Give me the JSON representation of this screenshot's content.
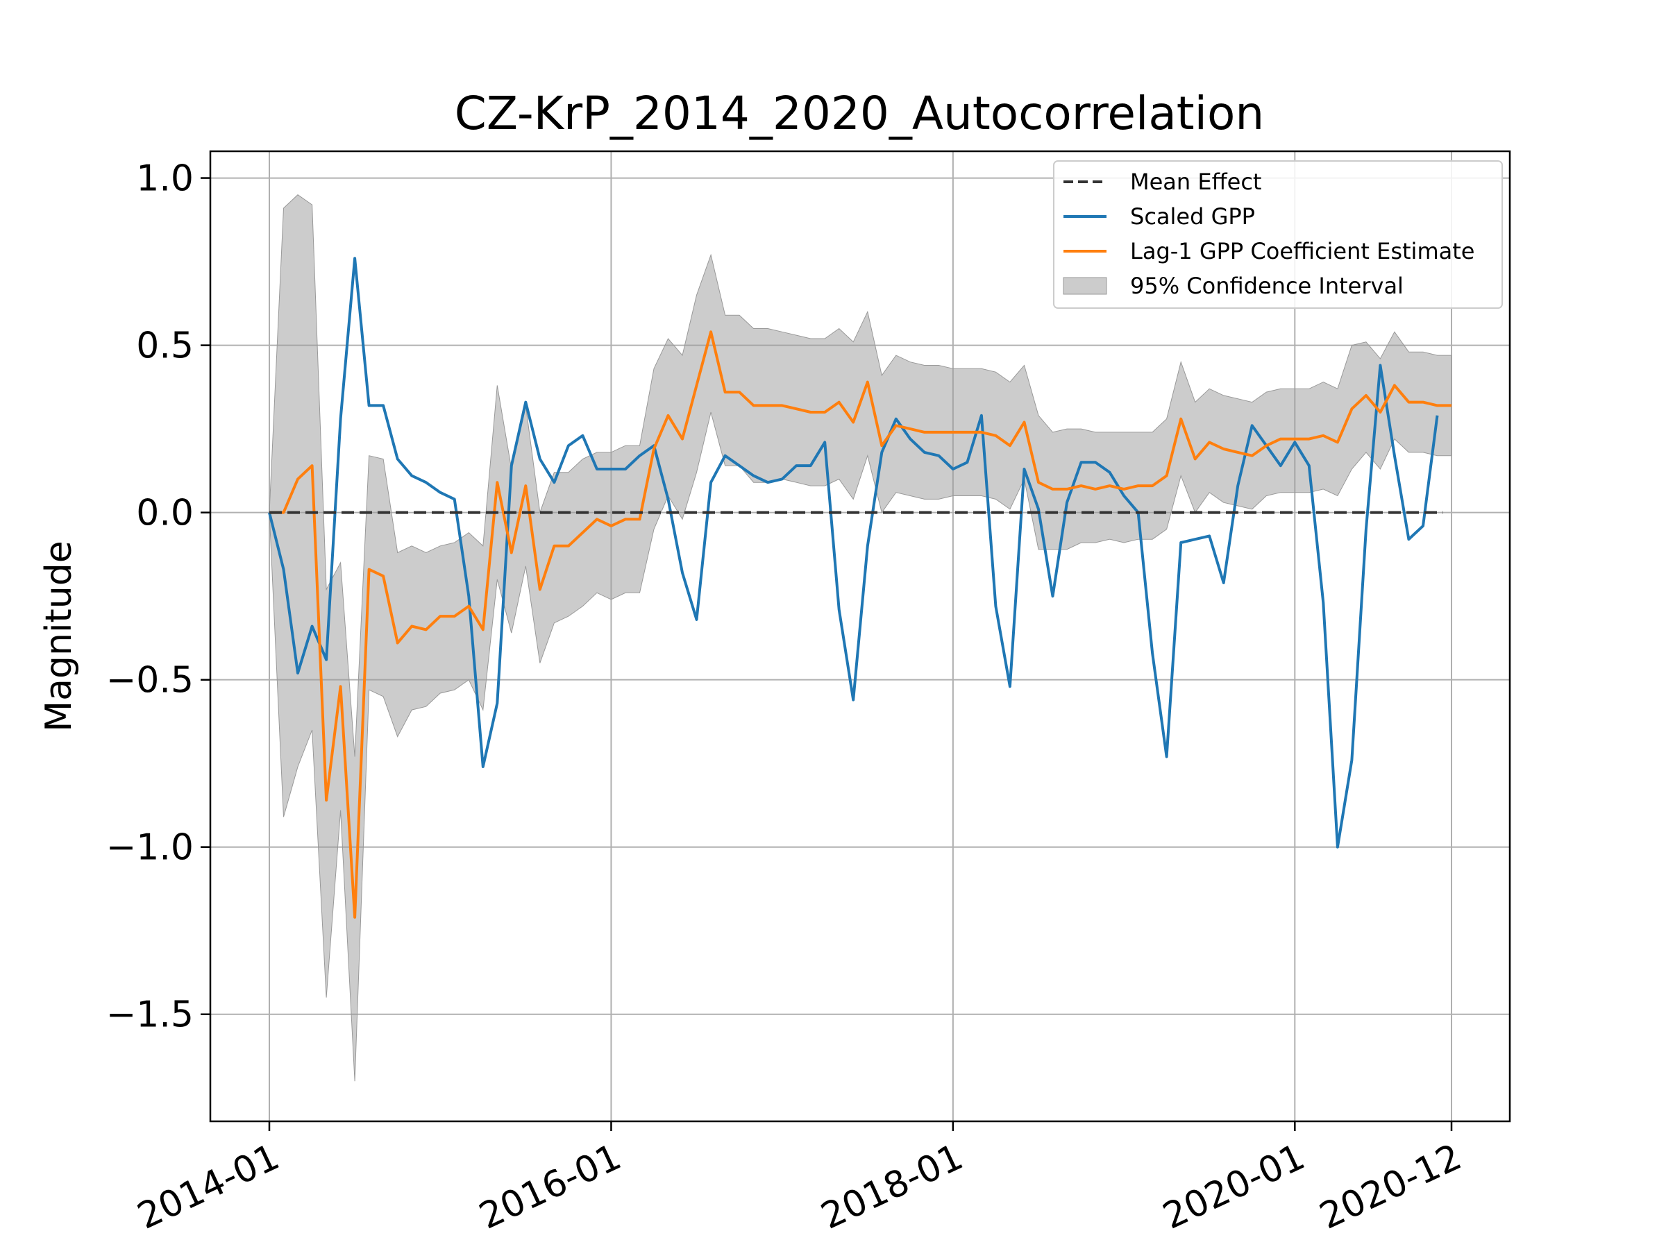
{
  "chart_data": {
    "type": "line",
    "title": "CZ-KrP_2014_2020_Autocorrelation",
    "xlabel": "",
    "ylabel": "Magnitude",
    "x_ticks": [
      "2014-01",
      "2016-01",
      "2018-01",
      "2020-01",
      "2020-12"
    ],
    "y_ticks": [
      "1.0",
      "0.5",
      "0.0",
      "−0.5",
      "−1.0",
      "−1.5"
    ],
    "ylim": [
      -1.82,
      1.08
    ],
    "grid": true,
    "legend_position": "top-right",
    "x_dates": [
      "2014-01",
      "2014-02",
      "2014-03",
      "2014-04",
      "2014-05",
      "2014-06",
      "2014-07",
      "2014-08",
      "2014-09",
      "2014-10",
      "2014-11",
      "2014-12",
      "2015-01",
      "2015-02",
      "2015-03",
      "2015-04",
      "2015-05",
      "2015-06",
      "2015-07",
      "2015-08",
      "2015-09",
      "2015-10",
      "2015-11",
      "2015-12",
      "2016-01",
      "2016-02",
      "2016-03",
      "2016-04",
      "2016-05",
      "2016-06",
      "2016-07",
      "2016-08",
      "2016-09",
      "2016-10",
      "2016-11",
      "2016-12",
      "2017-01",
      "2017-02",
      "2017-03",
      "2017-04",
      "2017-05",
      "2017-06",
      "2017-07",
      "2017-08",
      "2017-09",
      "2017-10",
      "2017-11",
      "2017-12",
      "2018-01",
      "2018-02",
      "2018-03",
      "2018-04",
      "2018-05",
      "2018-06",
      "2018-07",
      "2018-08",
      "2018-09",
      "2018-10",
      "2018-11",
      "2018-12",
      "2019-01",
      "2019-02",
      "2019-03",
      "2019-04",
      "2019-05",
      "2019-06",
      "2019-07",
      "2019-08",
      "2019-09",
      "2019-10",
      "2019-11",
      "2019-12",
      "2020-01",
      "2020-02",
      "2020-03",
      "2020-04",
      "2020-05",
      "2020-06",
      "2020-07",
      "2020-08",
      "2020-09",
      "2020-10",
      "2020-11",
      "2020-12"
    ],
    "series": [
      {
        "name": "Mean Effect",
        "color": "#333333",
        "style": "dashed",
        "values": [
          0,
          0,
          0,
          0,
          0,
          0,
          0,
          0,
          0,
          0,
          0,
          0,
          0,
          0,
          0,
          0,
          0,
          0,
          0,
          0,
          0,
          0,
          0,
          0,
          0,
          0,
          0,
          0,
          0,
          0,
          0,
          0,
          0,
          0,
          0,
          0,
          0,
          0,
          0,
          0,
          0,
          0,
          0,
          0,
          0,
          0,
          0,
          0,
          0,
          0,
          0,
          0,
          0,
          0,
          0,
          0,
          0,
          0,
          0,
          0,
          0,
          0,
          0,
          0,
          0,
          0,
          0,
          0,
          0,
          0,
          0,
          0,
          0,
          0,
          0,
          0,
          0,
          0,
          0,
          0,
          0,
          0,
          0
        ]
      },
      {
        "name": "Scaled GPP",
        "color": "#1f77b4",
        "style": "solid",
        "values": [
          0.0,
          -0.17,
          -0.48,
          -0.34,
          -0.44,
          0.28,
          0.76,
          0.32,
          0.32,
          0.16,
          0.11,
          0.09,
          0.06,
          0.04,
          -0.25,
          -0.76,
          -0.57,
          0.14,
          0.33,
          0.16,
          0.09,
          0.2,
          0.23,
          0.13,
          0.13,
          0.13,
          0.17,
          0.2,
          0.04,
          -0.18,
          -0.32,
          0.09,
          0.17,
          0.14,
          0.11,
          0.09,
          0.1,
          0.14,
          0.14,
          0.21,
          -0.29,
          -0.56,
          -0.1,
          0.18,
          0.28,
          0.22,
          0.18,
          0.17,
          0.13,
          0.15,
          0.29,
          -0.28,
          -0.52,
          0.13,
          0.01,
          -0.25,
          0.03,
          0.15,
          0.15,
          0.12,
          0.05,
          0.0,
          -0.42,
          -0.73,
          -0.09,
          -0.08,
          -0.07,
          -0.21,
          0.08,
          0.26,
          0.2,
          0.14,
          0.21,
          0.14,
          -0.27,
          -1.0,
          -0.74,
          -0.05,
          0.44,
          0.17,
          -0.08,
          -0.04,
          0.29,
          null
        ]
      },
      {
        "name": "Lag-1 GPP Coefficient Estimate",
        "color": "#ff7f0e",
        "style": "solid",
        "values": [
          0.0,
          0.0,
          0.1,
          0.14,
          -0.86,
          -0.52,
          -1.21,
          -0.17,
          -0.19,
          -0.39,
          -0.34,
          -0.35,
          -0.31,
          -0.31,
          -0.28,
          -0.35,
          0.09,
          -0.12,
          0.08,
          -0.23,
          -0.1,
          -0.1,
          -0.06,
          -0.02,
          -0.04,
          -0.02,
          -0.02,
          0.19,
          0.29,
          0.22,
          0.38,
          0.54,
          0.36,
          0.36,
          0.32,
          0.32,
          0.32,
          0.31,
          0.3,
          0.3,
          0.33,
          0.27,
          0.39,
          0.2,
          0.26,
          0.25,
          0.24,
          0.24,
          0.24,
          0.24,
          0.24,
          0.23,
          0.2,
          0.27,
          0.09,
          0.07,
          0.07,
          0.08,
          0.07,
          0.08,
          0.07,
          0.08,
          0.08,
          0.11,
          0.28,
          0.16,
          0.21,
          0.19,
          0.18,
          0.17,
          0.2,
          0.22,
          0.22,
          0.22,
          0.23,
          0.21,
          0.31,
          0.35,
          0.3,
          0.38,
          0.33,
          0.33,
          0.32,
          0.32
        ]
      }
    ],
    "confidence_interval": {
      "name": "95% Confidence Interval",
      "color": "#999999",
      "upper": [
        0.0,
        0.91,
        0.95,
        0.92,
        -0.23,
        -0.15,
        -0.73,
        0.17,
        0.16,
        -0.12,
        -0.1,
        -0.12,
        -0.1,
        -0.09,
        -0.06,
        -0.1,
        0.38,
        0.13,
        0.32,
        0.0,
        0.12,
        0.12,
        0.16,
        0.18,
        0.18,
        0.2,
        0.2,
        0.43,
        0.52,
        0.47,
        0.65,
        0.77,
        0.59,
        0.59,
        0.55,
        0.55,
        0.54,
        0.53,
        0.52,
        0.52,
        0.55,
        0.51,
        0.6,
        0.41,
        0.47,
        0.45,
        0.44,
        0.44,
        0.43,
        0.43,
        0.43,
        0.42,
        0.39,
        0.44,
        0.29,
        0.24,
        0.25,
        0.25,
        0.24,
        0.24,
        0.24,
        0.24,
        0.24,
        0.28,
        0.45,
        0.33,
        0.37,
        0.35,
        0.34,
        0.33,
        0.36,
        0.37,
        0.37,
        0.37,
        0.39,
        0.37,
        0.5,
        0.51,
        0.46,
        0.54,
        0.48,
        0.48,
        0.47,
        0.47
      ],
      "lower": [
        0.0,
        -0.91,
        -0.76,
        -0.65,
        -1.45,
        -0.89,
        -1.7,
        -0.53,
        -0.55,
        -0.67,
        -0.59,
        -0.58,
        -0.54,
        -0.53,
        -0.5,
        -0.59,
        -0.2,
        -0.36,
        -0.16,
        -0.45,
        -0.33,
        -0.31,
        -0.28,
        -0.24,
        -0.26,
        -0.24,
        -0.24,
        -0.05,
        0.05,
        -0.02,
        0.12,
        0.3,
        0.14,
        0.14,
        0.09,
        0.09,
        0.1,
        0.09,
        0.08,
        0.08,
        0.1,
        0.04,
        0.17,
        0.0,
        0.06,
        0.05,
        0.04,
        0.04,
        0.05,
        0.05,
        0.05,
        0.04,
        0.01,
        0.1,
        -0.11,
        -0.11,
        -0.11,
        -0.09,
        -0.09,
        -0.08,
        -0.09,
        -0.08,
        -0.08,
        -0.05,
        0.11,
        0.0,
        0.06,
        0.03,
        0.02,
        0.01,
        0.05,
        0.06,
        0.06,
        0.06,
        0.07,
        0.05,
        0.13,
        0.18,
        0.13,
        0.22,
        0.18,
        0.18,
        0.17,
        0.17
      ]
    }
  }
}
